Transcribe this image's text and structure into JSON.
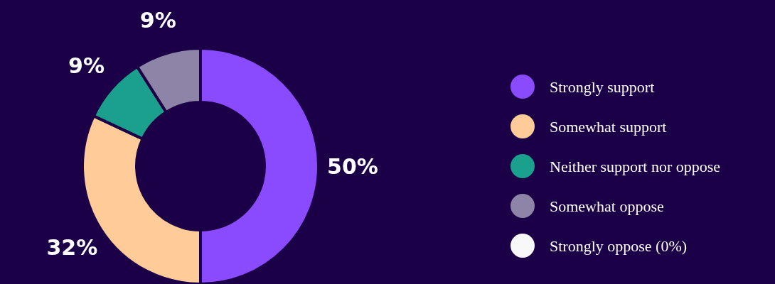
{
  "chart_data": {
    "type": "donut",
    "categories": [
      "Strongly support",
      "Somewhat support",
      "Neither support nor oppose",
      "Somewhat oppose",
      "Strongly oppose (0%)"
    ],
    "values": [
      50,
      32,
      9,
      9,
      0
    ],
    "colors": [
      "#8a4bff",
      "#ffcc99",
      "#1aa08c",
      "#8e84a8",
      "#f8f8f8"
    ],
    "value_labels": [
      "50%",
      "32%",
      "9%",
      "9%",
      null
    ],
    "legend": "right"
  }
}
